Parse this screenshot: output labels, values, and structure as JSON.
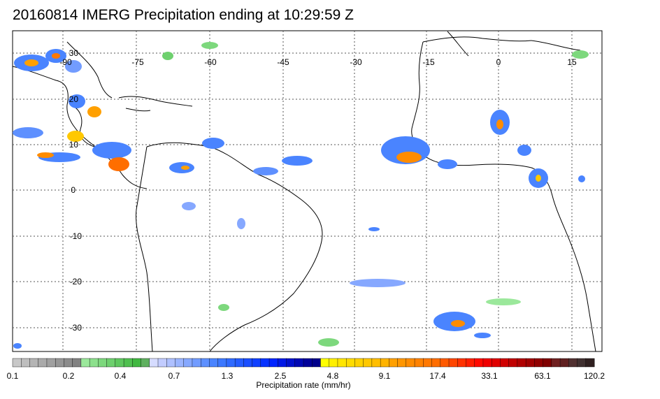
{
  "title": "20160814 IMERG Precipitation ending at 10:29:59 Z",
  "map": {
    "lon_labels": [
      "-90",
      "-75",
      "-60",
      "-45",
      "-30",
      "-15",
      "0",
      "15"
    ],
    "lat_labels": [
      "30",
      "20",
      "10",
      "0",
      "-10",
      "-20",
      "-30"
    ]
  },
  "colorbar": {
    "label": "Precipitation rate (mm/hr)",
    "tick_labels": [
      "0.1",
      "0.2",
      "0.4",
      "0.7",
      "1.3",
      "2.5",
      "4.8",
      "9.1",
      "17.4",
      "33.1",
      "63.1",
      "120.2"
    ],
    "colors": [
      "#c8c8c8",
      "#bebebe",
      "#b4b4b4",
      "#aaaaaa",
      "#a0a0a0",
      "#969696",
      "#8c8c8c",
      "#828282",
      "#9be89b",
      "#8ce08c",
      "#7dd87d",
      "#6ed06e",
      "#5fc85f",
      "#50c050",
      "#41b841",
      "#5fb05f",
      "#d6dcff",
      "#c2ccff",
      "#aec0ff",
      "#9ab4ff",
      "#86a8ff",
      "#729cff",
      "#5e90ff",
      "#4a84ff",
      "#3c78ff",
      "#2f6aff",
      "#245cff",
      "#1a4eff",
      "#1040ff",
      "#0632ff",
      "#0024ff",
      "#0018e6",
      "#0010cc",
      "#0008b3",
      "#000099",
      "#00008a",
      "#ffff00",
      "#fff000",
      "#ffe600",
      "#ffdc00",
      "#ffd200",
      "#ffc800",
      "#ffbe00",
      "#ffb400",
      "#ffa000",
      "#ff9600",
      "#ff8c00",
      "#ff8200",
      "#ff7800",
      "#ff6e00",
      "#ff5a00",
      "#ff4600",
      "#ff3200",
      "#ff1e00",
      "#ff0a00",
      "#f00000",
      "#e00000",
      "#d00000",
      "#c00000",
      "#b00000",
      "#a00000",
      "#900000",
      "#800000",
      "#702020",
      "#602020",
      "#503030",
      "#403030",
      "#302020"
    ]
  }
}
